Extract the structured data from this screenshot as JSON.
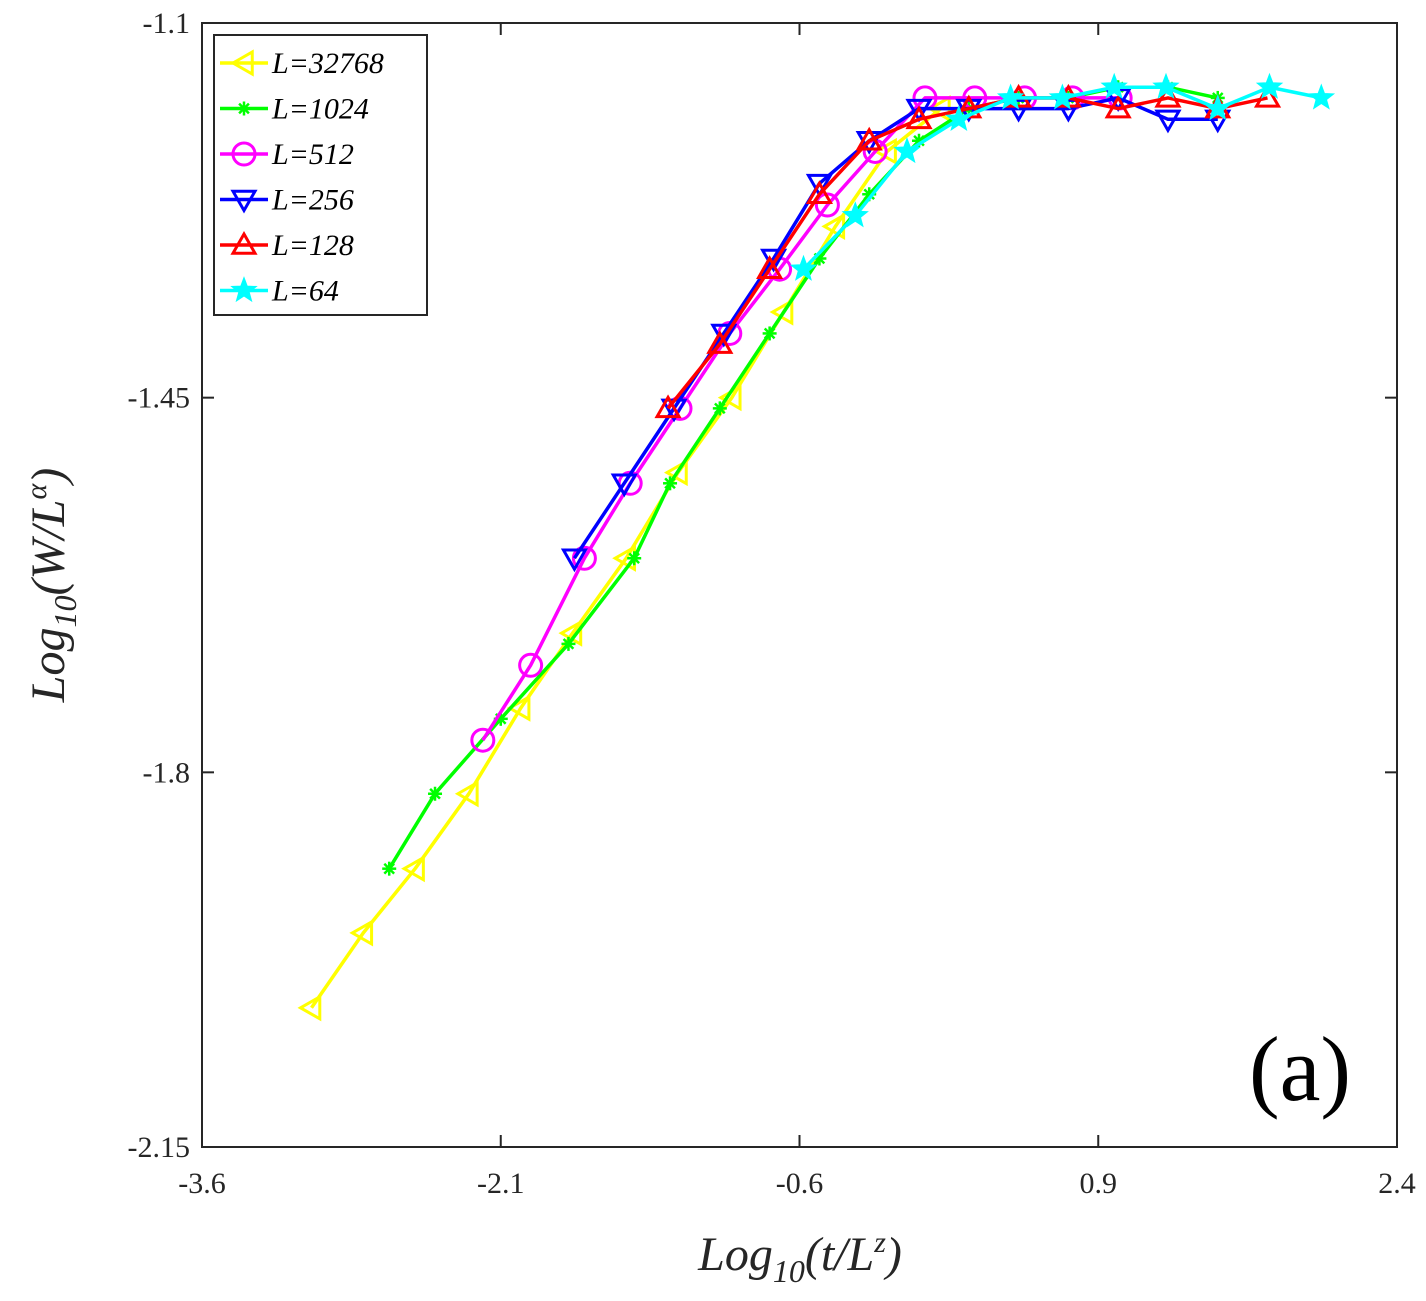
{
  "chart_data": {
    "type": "line",
    "title": "",
    "panel_label": "(a)",
    "xlabel": {
      "prefix": "Log",
      "sub": "10",
      "open": "(t/L",
      "sup": "z",
      "close": ")"
    },
    "ylabel": {
      "prefix": "Log",
      "sub": "10",
      "open": "(W/L",
      "sup": "α",
      "close": ")"
    },
    "xlim": [
      -3.6,
      2.4
    ],
    "ylim": [
      -2.15,
      -1.1
    ],
    "xticks": [
      -3.6,
      -2.1,
      -0.6,
      0.9,
      2.4
    ],
    "xtick_labels": [
      "-3.6",
      "-2.1",
      "-0.6",
      "0.9",
      "2.4"
    ],
    "yticks": [
      -2.15,
      -1.8,
      -1.45,
      -1.1
    ],
    "ytick_labels": [
      "-2.15",
      "-1.8",
      "-1.45",
      "-1.1"
    ],
    "legend_position": "top-left",
    "series": [
      {
        "name": "L=32768",
        "color": "#ffff00",
        "marker": "triangle-left",
        "x": [
          -3.05,
          -2.79,
          -2.53,
          -2.26,
          -2.0,
          -1.74,
          -1.47,
          -1.21,
          -0.94,
          -0.68,
          -0.42,
          -0.16,
          0.11
        ],
        "y": [
          -2.02,
          -1.95,
          -1.89,
          -1.82,
          -1.74,
          -1.67,
          -1.6,
          -1.52,
          -1.45,
          -1.37,
          -1.29,
          -1.22,
          -1.18
        ]
      },
      {
        "name": "L=1024",
        "color": "#00ff00",
        "marker": "asterisk",
        "x": [
          -2.66,
          -2.43,
          -2.1,
          -1.76,
          -1.43,
          -1.25,
          -1.0,
          -0.75,
          -0.5,
          -0.25,
          0.0,
          0.25,
          0.5,
          0.75,
          1.0,
          1.25,
          1.5
        ],
        "y": [
          -1.89,
          -1.82,
          -1.75,
          -1.68,
          -1.6,
          -1.53,
          -1.46,
          -1.39,
          -1.32,
          -1.26,
          -1.21,
          -1.18,
          -1.17,
          -1.17,
          -1.16,
          -1.16,
          -1.17
        ]
      },
      {
        "name": "L=512",
        "color": "#ff00ff",
        "marker": "circle",
        "x": [
          -2.19,
          -1.95,
          -1.68,
          -1.45,
          -1.2,
          -0.95,
          -0.7,
          -0.46,
          -0.22,
          0.03,
          0.28,
          0.53,
          0.77,
          1.01
        ],
        "y": [
          -1.77,
          -1.7,
          -1.6,
          -1.53,
          -1.46,
          -1.39,
          -1.33,
          -1.27,
          -1.22,
          -1.17,
          -1.17,
          -1.17,
          -1.17,
          -1.17
        ]
      },
      {
        "name": "L=256",
        "color": "#0000ff",
        "marker": "triangle-down",
        "x": [
          -1.73,
          -1.48,
          -1.23,
          -0.98,
          -0.73,
          -0.5,
          -0.25,
          0.0,
          0.25,
          0.5,
          0.75,
          1.0,
          1.25,
          1.5
        ],
        "y": [
          -1.6,
          -1.53,
          -1.46,
          -1.39,
          -1.32,
          -1.25,
          -1.21,
          -1.18,
          -1.18,
          -1.18,
          -1.18,
          -1.17,
          -1.19,
          -1.19
        ]
      },
      {
        "name": "L=128",
        "color": "#ff0000",
        "marker": "triangle-up",
        "x": [
          -1.26,
          -1.0,
          -0.75,
          -0.5,
          -0.25,
          0.0,
          0.25,
          0.5,
          0.75,
          1.0,
          1.25,
          1.5,
          1.75
        ],
        "y": [
          -1.46,
          -1.4,
          -1.33,
          -1.26,
          -1.21,
          -1.19,
          -1.18,
          -1.17,
          -1.17,
          -1.18,
          -1.17,
          -1.18,
          -1.17
        ]
      },
      {
        "name": "L=64",
        "color": "#00ffff",
        "marker": "star",
        "x": [
          -0.58,
          -0.32,
          -0.06,
          0.2,
          0.46,
          0.72,
          0.98,
          1.24,
          1.5,
          1.76,
          2.02
        ],
        "y": [
          -1.33,
          -1.28,
          -1.22,
          -1.19,
          -1.17,
          -1.17,
          -1.16,
          -1.16,
          -1.18,
          -1.16,
          -1.17
        ]
      }
    ]
  }
}
